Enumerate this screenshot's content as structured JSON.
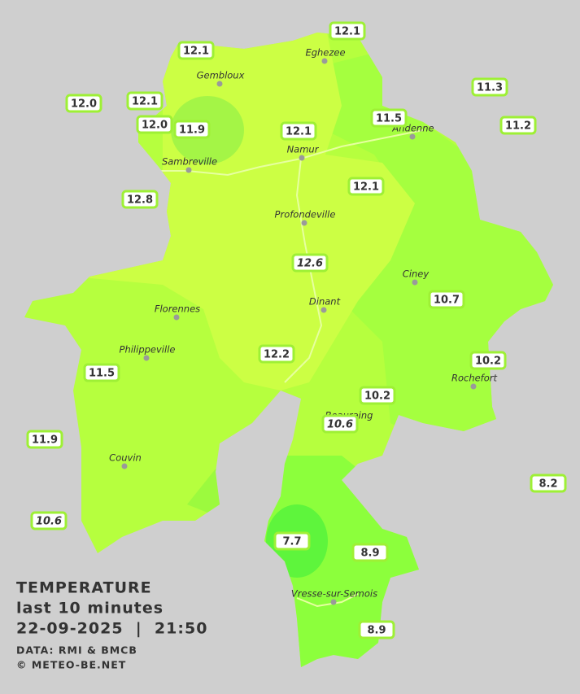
{
  "header": {
    "title": "TEMPERATURE",
    "subtitle": "last 10 minutes",
    "datetime": "22-09-2025  |  21:50",
    "source": "DATA: RMI & BMCB",
    "credit": "© METEO-BE.NET"
  },
  "places": [
    "Eghezee",
    "Gembloux",
    "Andenne",
    "Namur",
    "Sambreville",
    "Profondeville",
    "Ciney",
    "Florennes",
    "Dinant",
    "Philippeville",
    "Rochefort",
    "Beauraing",
    "Couvin",
    "Vresse-sur-Semois"
  ],
  "stations": [
    "12.1",
    "12.1",
    "12.0",
    "12.1",
    "12.0",
    "11.9",
    "11.3",
    "11.5",
    "11.2",
    "12.1",
    "12.8",
    "12.1",
    "12.6",
    "10.7",
    "12.2",
    "10.2",
    "11.5",
    "10.2",
    "10.6",
    "11.9",
    "8.2",
    "10.6",
    "7.7",
    "8.9",
    "8.9"
  ]
}
